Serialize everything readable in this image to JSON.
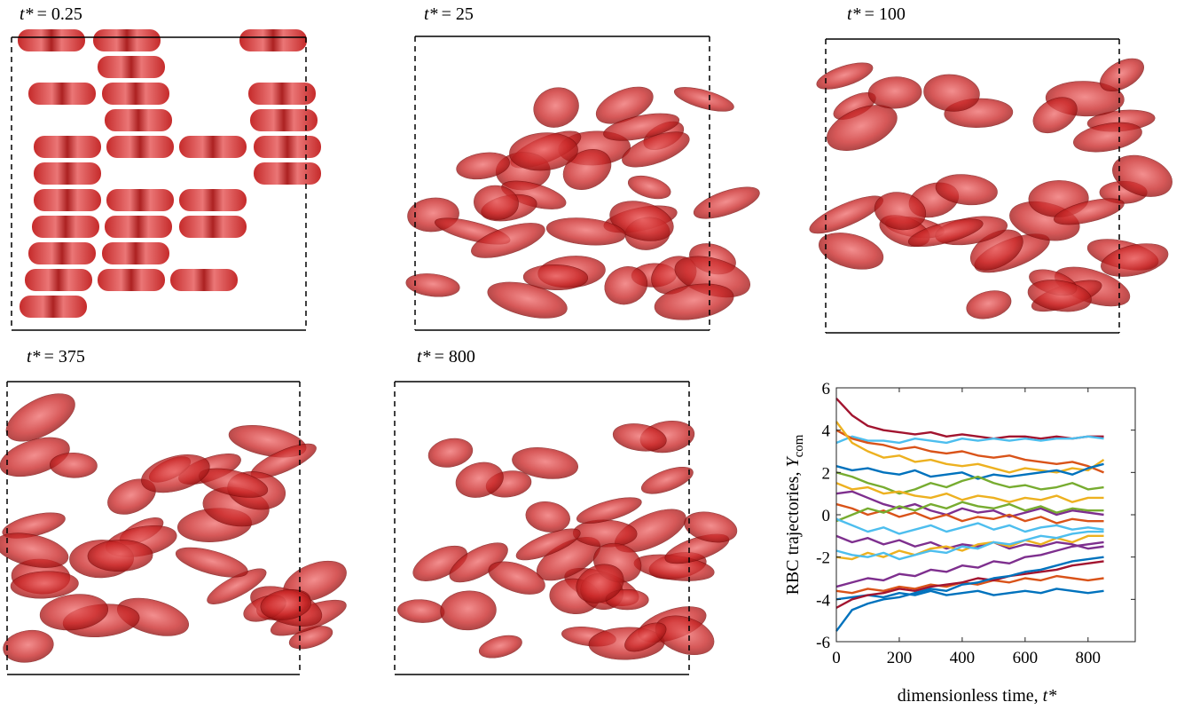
{
  "panels": [
    {
      "symbol": "t*",
      "value": "= 0.25"
    },
    {
      "symbol": "t*",
      "value": "= 25"
    },
    {
      "symbol": "t*",
      "value": "= 100"
    },
    {
      "symbol": "t*",
      "value": "= 375"
    },
    {
      "symbol": "t*",
      "value": "= 800"
    }
  ],
  "chart_data": {
    "type": "line",
    "ylabel": {
      "text": "RBC trajectories,",
      "symbol": "Y",
      "subscript": "com"
    },
    "xlabel": {
      "text": "dimensionless time,",
      "symbol": "t*"
    },
    "xlim": [
      0,
      950
    ],
    "xticks": [
      0,
      200,
      400,
      600,
      800
    ],
    "ylim": [
      -6,
      6
    ],
    "yticks": [
      -6,
      -4,
      -2,
      0,
      2,
      4,
      6
    ],
    "x": [
      0,
      50,
      100,
      150,
      200,
      250,
      300,
      350,
      400,
      450,
      500,
      550,
      600,
      650,
      700,
      750,
      800,
      850
    ],
    "series": [
      {
        "color": "#A2142F",
        "values": [
          5.5,
          4.7,
          4.2,
          4.0,
          3.9,
          3.8,
          3.9,
          3.7,
          3.8,
          3.7,
          3.6,
          3.7,
          3.7,
          3.6,
          3.7,
          3.6,
          3.7,
          3.7
        ]
      },
      {
        "color": "#4DBEEE",
        "values": [
          3.4,
          3.7,
          3.5,
          3.5,
          3.4,
          3.6,
          3.5,
          3.4,
          3.6,
          3.5,
          3.6,
          3.5,
          3.6,
          3.5,
          3.6,
          3.6,
          3.7,
          3.6
        ]
      },
      {
        "color": "#D95319",
        "values": [
          4.0,
          3.6,
          3.4,
          3.3,
          3.1,
          3.2,
          3.0,
          2.9,
          3.0,
          2.8,
          2.7,
          2.8,
          2.6,
          2.5,
          2.4,
          2.5,
          2.3,
          2.0
        ]
      },
      {
        "color": "#EDB120",
        "values": [
          4.4,
          3.4,
          3.0,
          2.7,
          2.8,
          2.5,
          2.6,
          2.4,
          2.3,
          2.4,
          2.2,
          2.0,
          2.2,
          2.1,
          2.0,
          2.2,
          2.1,
          2.6
        ]
      },
      {
        "color": "#0072BD",
        "values": [
          2.3,
          2.1,
          2.2,
          2.0,
          1.9,
          2.1,
          1.8,
          1.9,
          2.0,
          1.7,
          1.9,
          1.8,
          1.9,
          2.0,
          2.1,
          1.9,
          2.2,
          2.4
        ]
      },
      {
        "color": "#77AC30",
        "values": [
          2.0,
          1.8,
          1.5,
          1.3,
          1.0,
          1.2,
          1.5,
          1.3,
          1.6,
          1.8,
          1.5,
          1.3,
          1.4,
          1.2,
          1.3,
          1.5,
          1.2,
          1.3
        ]
      },
      {
        "color": "#EDB120",
        "values": [
          1.5,
          1.2,
          1.3,
          1.0,
          1.1,
          0.9,
          0.8,
          1.0,
          0.7,
          0.9,
          0.8,
          0.6,
          0.8,
          0.7,
          0.9,
          0.6,
          0.8,
          0.8
        ]
      },
      {
        "color": "#7E2F8E",
        "values": [
          1.0,
          1.1,
          0.8,
          0.5,
          0.3,
          0.5,
          0.2,
          0.0,
          0.3,
          0.1,
          0.2,
          -0.1,
          0.1,
          0.3,
          0.0,
          0.2,
          0.1,
          0.0
        ]
      },
      {
        "color": "#D95319",
        "values": [
          0.5,
          0.3,
          0.0,
          0.2,
          -0.1,
          0.1,
          -0.2,
          0.0,
          -0.3,
          -0.1,
          -0.2,
          0.0,
          -0.3,
          -0.1,
          -0.4,
          -0.2,
          -0.3,
          -0.3
        ]
      },
      {
        "color": "#77AC30",
        "values": [
          -0.3,
          0.0,
          0.3,
          0.1,
          0.4,
          0.2,
          0.5,
          0.3,
          0.6,
          0.4,
          0.3,
          0.5,
          0.2,
          0.4,
          0.1,
          0.3,
          0.2,
          0.2
        ]
      },
      {
        "color": "#4DBEEE",
        "values": [
          -0.2,
          -0.5,
          -0.8,
          -0.6,
          -0.9,
          -0.7,
          -0.5,
          -0.8,
          -0.6,
          -0.4,
          -0.7,
          -0.5,
          -0.8,
          -0.6,
          -0.5,
          -0.7,
          -0.6,
          -0.7
        ]
      },
      {
        "color": "#7E2F8E",
        "values": [
          -1.0,
          -1.3,
          -1.1,
          -1.4,
          -1.2,
          -1.5,
          -1.3,
          -1.6,
          -1.4,
          -1.5,
          -1.3,
          -1.6,
          -1.4,
          -1.5,
          -1.3,
          -1.4,
          -1.6,
          -1.5
        ]
      },
      {
        "color": "#EDB120",
        "values": [
          -2.0,
          -2.1,
          -1.8,
          -2.0,
          -1.7,
          -1.9,
          -1.6,
          -1.5,
          -1.7,
          -1.4,
          -1.3,
          -1.5,
          -1.2,
          -1.4,
          -1.1,
          -1.3,
          -1.0,
          -1.0
        ]
      },
      {
        "color": "#4DBEEE",
        "values": [
          -1.7,
          -1.9,
          -2.0,
          -1.8,
          -2.1,
          -1.9,
          -1.7,
          -1.8,
          -1.5,
          -1.6,
          -1.3,
          -1.4,
          -1.2,
          -1.0,
          -1.1,
          -0.9,
          -0.8,
          -0.8
        ]
      },
      {
        "color": "#7E2F8E",
        "values": [
          -3.4,
          -3.2,
          -3.0,
          -3.1,
          -2.8,
          -2.9,
          -2.6,
          -2.7,
          -2.4,
          -2.5,
          -2.2,
          -2.3,
          -2.0,
          -1.9,
          -1.7,
          -1.5,
          -1.4,
          -1.3
        ]
      },
      {
        "color": "#D95319",
        "values": [
          -3.6,
          -3.7,
          -3.5,
          -3.6,
          -3.4,
          -3.5,
          -3.3,
          -3.4,
          -3.2,
          -3.3,
          -3.1,
          -3.2,
          -3.0,
          -3.1,
          -2.9,
          -3.0,
          -3.1,
          -3.0
        ]
      },
      {
        "color": "#0072BD",
        "values": [
          -4.0,
          -3.9,
          -3.8,
          -3.9,
          -3.7,
          -3.8,
          -3.6,
          -3.8,
          -3.7,
          -3.6,
          -3.8,
          -3.7,
          -3.6,
          -3.7,
          -3.5,
          -3.6,
          -3.7,
          -3.6
        ]
      },
      {
        "color": "#A2142F",
        "values": [
          -4.4,
          -4.0,
          -3.8,
          -3.7,
          -3.5,
          -3.6,
          -3.4,
          -3.3,
          -3.2,
          -3.0,
          -3.1,
          -2.9,
          -2.8,
          -2.7,
          -2.6,
          -2.4,
          -2.3,
          -2.2
        ]
      },
      {
        "color": "#0072BD",
        "values": [
          -5.5,
          -4.5,
          -4.2,
          -4.0,
          -3.9,
          -3.7,
          -3.5,
          -3.6,
          -3.3,
          -3.2,
          -3.0,
          -2.9,
          -2.7,
          -2.6,
          -2.4,
          -2.2,
          -2.1,
          -2.0
        ]
      }
    ]
  }
}
